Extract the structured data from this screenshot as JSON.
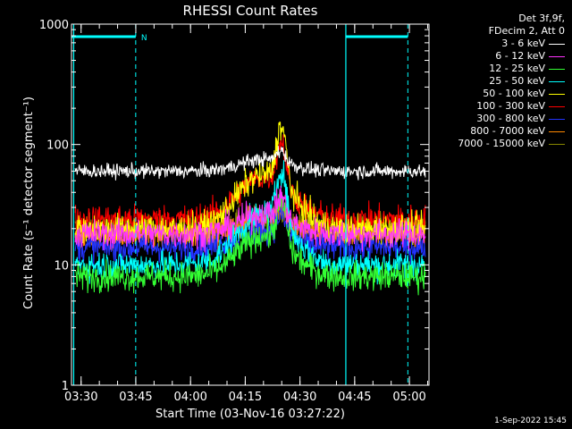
{
  "chart_data": {
    "type": "line",
    "title": "RHESSI Count Rates",
    "xlabel": "Start Time (03-Nov-16 03:27:22)",
    "ylabel": "Count Rate (s⁻¹ detector segment⁻¹)",
    "y_scale": "log",
    "ylim": [
      1,
      1000
    ],
    "x_unit": "minutes since 03:27:22",
    "xlim_minutes": [
      0,
      98
    ],
    "x_ticks": [
      {
        "label": "03:30",
        "minute": 2.63
      },
      {
        "label": "03:45",
        "minute": 17.63
      },
      {
        "label": "04:00",
        "minute": 32.63
      },
      {
        "label": "04:15",
        "minute": 47.63
      },
      {
        "label": "04:30",
        "minute": 62.63
      },
      {
        "label": "04:45",
        "minute": 77.63
      },
      {
        "label": "05:00",
        "minute": 92.63
      }
    ],
    "y_ticks": [
      {
        "label": "1",
        "value": 1
      },
      {
        "label": "10",
        "value": 10
      },
      {
        "label": "100",
        "value": 100
      },
      {
        "label": "1000",
        "value": 1000
      }
    ],
    "night_marker_label": "N",
    "legend_header": [
      "Det 3f,9f,",
      "FDecim 2, Att 0"
    ],
    "series": [
      {
        "name": "3 - 6 keV",
        "color": "#ffffff",
        "base": 60,
        "peak": 95
      },
      {
        "name": "6 - 12 keV",
        "color": "#ff33ff",
        "base": 18,
        "peak": 40
      },
      {
        "name": "12 - 25 keV",
        "color": "#33ff33",
        "base": 8,
        "peak": 38
      },
      {
        "name": "25 - 50 keV",
        "color": "#00ffff",
        "base": 10,
        "peak": 70
      },
      {
        "name": "50 - 100 keV",
        "color": "#ffff00",
        "base": 20,
        "peak": 160
      },
      {
        "name": "100 - 300 keV",
        "color": "#ff0000",
        "base": 24,
        "peak": 120
      },
      {
        "name": "300 - 800 keV",
        "color": "#2233ff",
        "base": 14,
        "peak": 28
      },
      {
        "name": "800 - 7000 keV",
        "color": "#ff8800",
        "base": 18,
        "peak": 32
      },
      {
        "name": "7000 - 15000 keV",
        "color": "#888800",
        "base": 20,
        "peak": 30
      }
    ]
  },
  "timestamp": "1-Sep-2022 15:45"
}
